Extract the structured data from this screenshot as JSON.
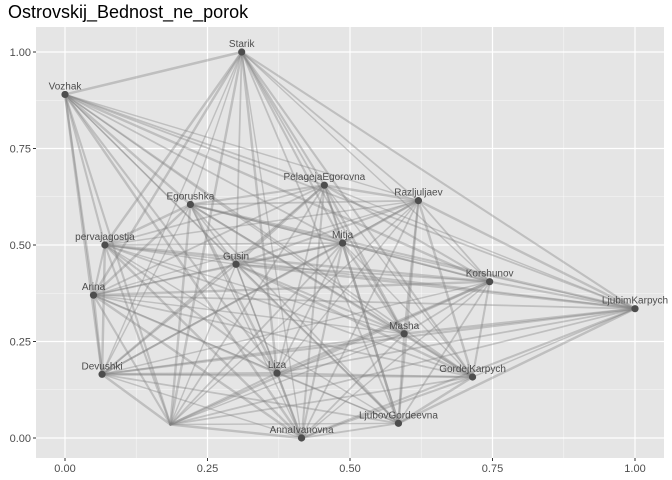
{
  "chart_data": {
    "type": "network",
    "title": "Ostrovskij_Bednost_ne_porok",
    "xlim": [
      -0.05,
      1.05
    ],
    "ylim": [
      -0.05,
      1.05
    ],
    "x_ticks": [
      0.0,
      0.25,
      0.5,
      0.75,
      1.0
    ],
    "y_ticks": [
      0.0,
      0.25,
      0.5,
      0.75,
      1.0
    ],
    "x_tick_labels": [
      "0.00",
      "0.25",
      "0.50",
      "0.75",
      "1.00"
    ],
    "y_tick_labels": [
      "0.00",
      "0.25",
      "0.50",
      "0.75",
      "1.00"
    ],
    "grid": true,
    "colors": {
      "panel": "#e5e5e5",
      "grid": "#ffffff",
      "edge": "#808080",
      "node": "#4d4d4d",
      "label": "#4d4d4d"
    },
    "nodes": [
      {
        "name": "Starik",
        "x": 0.31,
        "y": 1.0
      },
      {
        "name": "Vozhak",
        "x": 0.0,
        "y": 0.89
      },
      {
        "name": "PelagejaEgorovna",
        "x": 0.455,
        "y": 0.655
      },
      {
        "name": "Razljuljaev",
        "x": 0.62,
        "y": 0.615
      },
      {
        "name": "Egorushka",
        "x": 0.22,
        "y": 0.605
      },
      {
        "name": "pervajagostja",
        "x": 0.07,
        "y": 0.5
      },
      {
        "name": "Mitja",
        "x": 0.487,
        "y": 0.505
      },
      {
        "name": "Gusin",
        "x": 0.3,
        "y": 0.45
      },
      {
        "name": "Korshunov",
        "x": 0.745,
        "y": 0.405
      },
      {
        "name": "Arina",
        "x": 0.05,
        "y": 0.37
      },
      {
        "name": "LjubimKarpych",
        "x": 1.0,
        "y": 0.335
      },
      {
        "name": "Masha",
        "x": 0.595,
        "y": 0.27
      },
      {
        "name": "Devushki",
        "x": 0.065,
        "y": 0.165
      },
      {
        "name": "Liza",
        "x": 0.372,
        "y": 0.168
      },
      {
        "name": "GordejKarpych",
        "x": 0.715,
        "y": 0.158
      },
      {
        "name": "LjubovGordeevna",
        "x": 0.585,
        "y": 0.038
      },
      {
        "name": "AnnaIvanovna",
        "x": 0.415,
        "y": 0.0
      },
      {
        "name": "",
        "x": 0.185,
        "y": 0.035
      }
    ]
  }
}
